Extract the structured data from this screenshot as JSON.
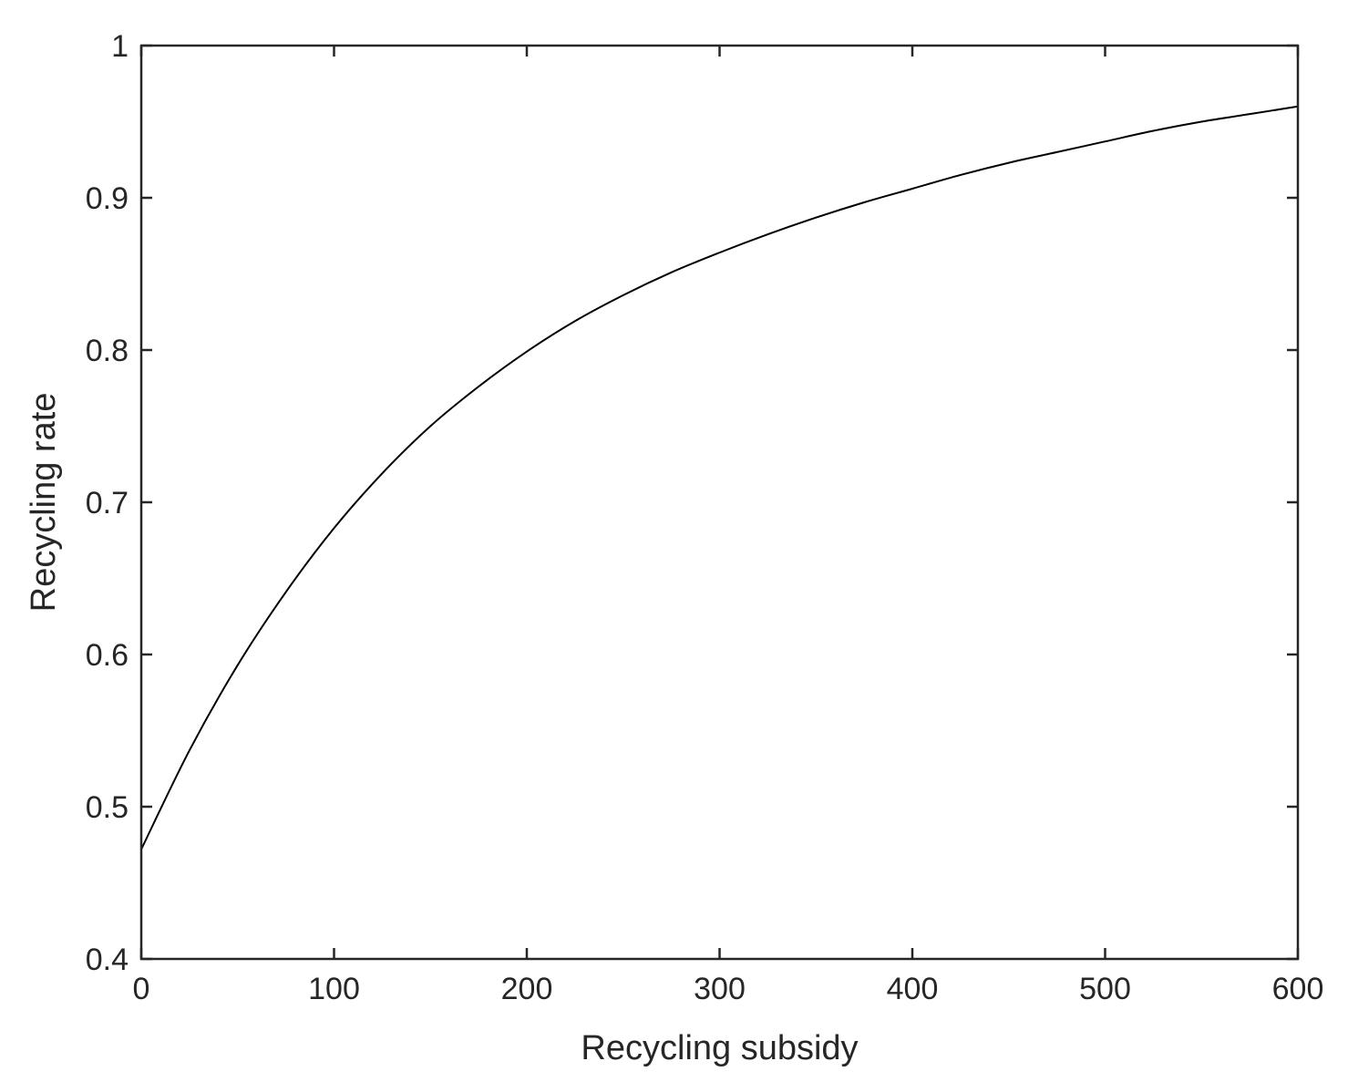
{
  "chart_data": {
    "type": "line",
    "title": "",
    "xlabel": "Recycling subsidy",
    "ylabel": "Recycling rate",
    "xlim": [
      0,
      600
    ],
    "ylim": [
      0.4,
      1
    ],
    "xticks": [
      0,
      100,
      200,
      300,
      400,
      500,
      600
    ],
    "xtick_labels": [
      "0",
      "100",
      "200",
      "300",
      "400",
      "500",
      "600"
    ],
    "yticks": [
      0.4,
      0.5,
      0.6,
      0.7,
      0.8,
      0.9,
      1
    ],
    "ytick_labels": [
      "0.4",
      "0.5",
      "0.6",
      "0.7",
      "0.8",
      "0.9",
      "1"
    ],
    "grid": false,
    "legend": "none",
    "series": [
      {
        "color": "#000000",
        "x": [
          0,
          25,
          50,
          75,
          100,
          125,
          150,
          175,
          200,
          225,
          250,
          275,
          300,
          325,
          350,
          375,
          400,
          425,
          450,
          475,
          500,
          525,
          550,
          575,
          600
        ],
        "y": [
          0.472,
          0.537,
          0.593,
          0.641,
          0.683,
          0.719,
          0.75,
          0.776,
          0.799,
          0.819,
          0.836,
          0.851,
          0.864,
          0.876,
          0.887,
          0.897,
          0.906,
          0.915,
          0.923,
          0.93,
          0.937,
          0.944,
          0.95,
          0.955,
          0.96
        ]
      }
    ]
  }
}
